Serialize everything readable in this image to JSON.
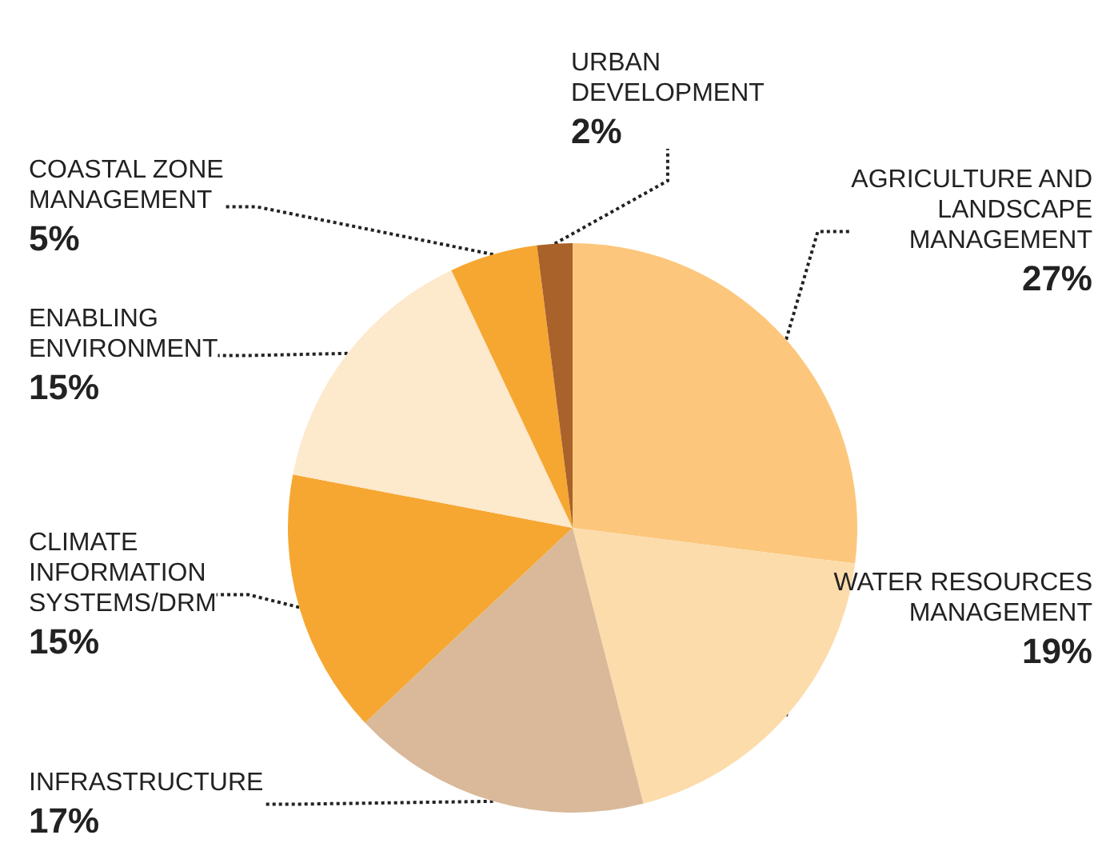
{
  "chart_data": {
    "type": "pie",
    "categories": [
      "AGRICULTURE AND LANDSCAPE MANAGEMENT",
      "WATER RESOURCES MANAGEMENT",
      "INFRASTRUCTURE",
      "CLIMATE INFORMATION SYSTEMS/DRM",
      "ENABLING ENVIRONMENT",
      "COASTAL ZONE MANAGEMENT",
      "URBAN DEVELOPMENT"
    ],
    "values": [
      27,
      19,
      17,
      15,
      15,
      5,
      2
    ],
    "value_labels": [
      "27%",
      "19%",
      "17%",
      "15%",
      "15%",
      "5%",
      "2%"
    ],
    "colors": [
      "#fcc77c",
      "#fcdcab",
      "#d9b99a",
      "#f6a732",
      "#fde9cc",
      "#f6a732",
      "#a8622a"
    ],
    "legend": false
  }
}
